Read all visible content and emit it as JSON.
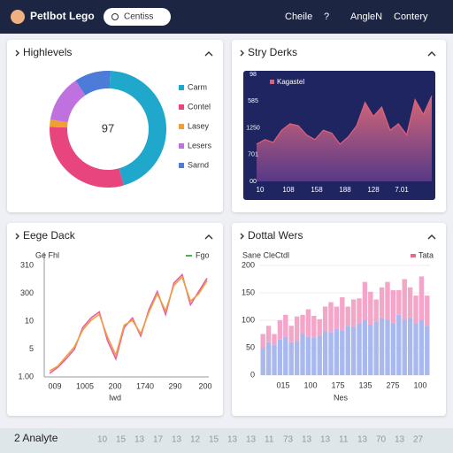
{
  "header": {
    "title": "Petlbot Lego",
    "search": "Centiss",
    "nav": [
      "Cheile",
      "?",
      "AngleN",
      "Contery"
    ]
  },
  "chart_data": [
    {
      "type": "donut",
      "title": "Highlevels",
      "center_label": "97",
      "categories": [
        "Carm",
        "Contel",
        "Lasey",
        "Lesers",
        "Sarnd"
      ],
      "values": [
        45,
        30,
        2,
        13,
        10
      ],
      "colors": [
        "#1fa8cc",
        "#e8457f",
        "#f0a030",
        "#c071e0",
        "#4d7bd8"
      ]
    },
    {
      "type": "area",
      "title": "Stry Derks",
      "ylim": [
        0,
        100
      ],
      "y_labels": [
        "98",
        "585",
        "1250",
        "701",
        "00"
      ],
      "x_labels": [
        "10",
        "108",
        "158",
        "188",
        "128",
        "7.01"
      ],
      "series": [
        {
          "name": "Kagastel",
          "color": "#e0607a",
          "values": [
            40,
            45,
            42,
            55,
            62,
            60,
            50,
            45,
            55,
            52,
            40,
            48,
            60,
            85,
            70,
            80,
            55,
            62,
            50,
            88,
            72,
            92
          ]
        }
      ]
    },
    {
      "type": "line",
      "title": "Eege Dack",
      "ylabel": "Ge Fhl",
      "xlabel": "Iwd",
      "ylim": [
        0,
        100
      ],
      "y_labels": [
        "310",
        "300",
        "10",
        "5",
        "1.00"
      ],
      "x_labels": [
        "009",
        "1005",
        "200",
        "1740",
        "290",
        "200"
      ],
      "series": [
        {
          "name": "Fgo",
          "color": "#e85fa0",
          "values": [
            3,
            8,
            15,
            23,
            41,
            49,
            54,
            30,
            15,
            41,
            49,
            34,
            56,
            71,
            52,
            78,
            85,
            60,
            71,
            82
          ]
        },
        {
          "color": "#f0a040",
          "values": [
            5,
            9,
            17,
            25,
            39,
            47,
            52,
            33,
            18,
            43,
            47,
            36,
            54,
            69,
            55,
            76,
            83,
            63,
            69,
            80
          ]
        }
      ]
    },
    {
      "type": "stacked-bar",
      "title": "Dottal Wers",
      "ylabel": "Sane CleCtdl",
      "xlabel": "Nes",
      "ylim": [
        0,
        200
      ],
      "yticks": [
        0,
        50,
        100,
        150,
        200
      ],
      "x_labels": [
        "015",
        "100",
        "175",
        "135",
        "275",
        "100"
      ],
      "series": [
        {
          "color": "#a9b8ee",
          "values": [
            50,
            60,
            55,
            65,
            70,
            60,
            62,
            75,
            70,
            68,
            72,
            80,
            78,
            85,
            82,
            90,
            88,
            95,
            100,
            92,
            98,
            105,
            100,
            95,
            110,
            100,
            105,
            95,
            100,
            90
          ]
        },
        {
          "name": "Tata",
          "color": "#f4a6c8",
          "values": [
            25,
            30,
            20,
            35,
            40,
            30,
            45,
            35,
            50,
            40,
            30,
            45,
            55,
            40,
            60,
            35,
            50,
            45,
            70,
            60,
            40,
            55,
            70,
            60,
            45,
            75,
            55,
            50,
            80,
            55
          ]
        }
      ]
    }
  ],
  "footer": {
    "title": "2 Analyte",
    "numbers": [
      "10",
      "15",
      "13",
      "17",
      "13",
      "12",
      "15",
      "13",
      "13",
      "11",
      "73",
      "13",
      "13",
      "11",
      "13",
      "70",
      "13",
      "27"
    ]
  }
}
